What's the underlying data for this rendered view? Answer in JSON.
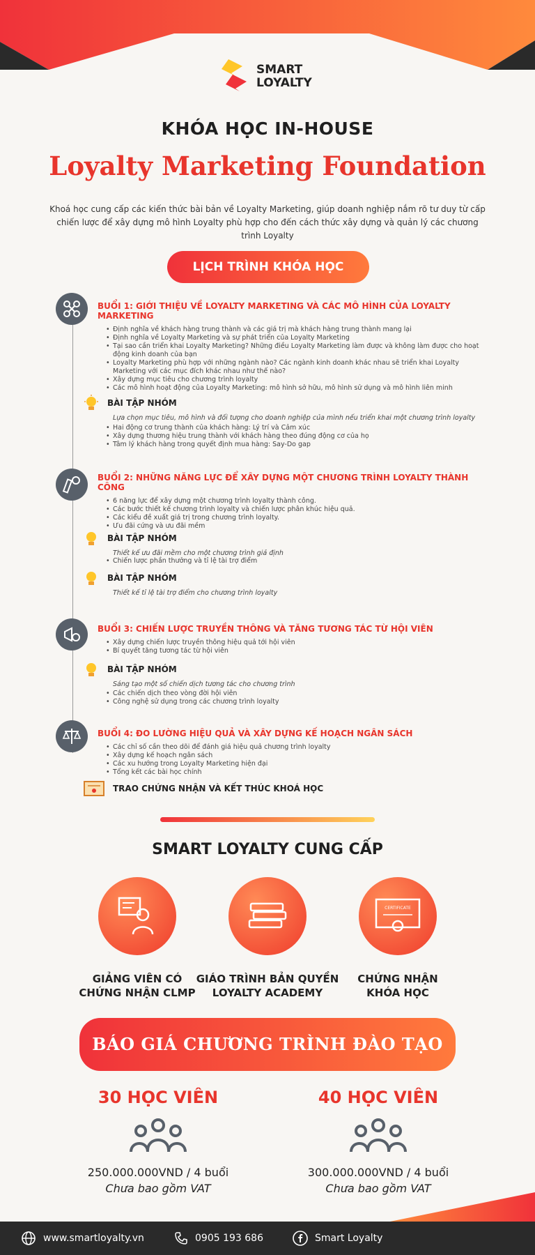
{
  "brand": {
    "logo_line1": "SMART",
    "logo_line2": "LOYALTY"
  },
  "header": {
    "subtitle": "KHÓA HỌC IN-HOUSE",
    "title": "Loyalty Marketing Foundation",
    "intro": "Khoá học cung cấp các kiến thức bài bản về Loyalty Marketing, giúp doanh nghiệp nắm rõ tư duy từ cấp chiến lược để xây dựng mô hình Loyalty phù hợp cho đến cách thức xây dựng và quản lý các chương trình Loyalty"
  },
  "schedule": {
    "label": "LỊCH TRÌNH KHÓA HỌC",
    "sessions": [
      {
        "title": "BUỔI 1: GIỚI THIỆU VỀ LOYALTY MARKETING VÀ CÁC MÔ HÌNH CỦA LOYALTY MARKETING",
        "items": [
          "Định nghĩa về khách hàng trung thành và các giá trị mà khách hàng trung thành mang lại",
          "Định nghĩa về Loyalty Marketing và sự phát triển của Loyalty Marketing",
          "Tại sao cần triển khai Loyalty Marketing? Những điều Loyalty Marketing làm được và không làm được cho hoạt động kinh doanh của bạn",
          "Loyalty Marketing phù hợp với những ngành nào? Các ngành kinh doanh khác nhau sẽ triển khai Loyalty Marketing với các mục đích khác nhau như thế nào?",
          "Xây dựng mục tiêu cho chương trình loyalty",
          "Các mô hình hoạt động của Loyalty Marketing: mô hình sở hữu, mô hình sử dụng và mô hình liên minh"
        ],
        "group_label": "BÀI TẬP NHÓM",
        "group_note": "Lựa chọn mục tiêu, mô hình và đối tượng cho doanh nghiệp của mình nếu triển khai một chương trình loyalty",
        "after": [
          "Hai động cơ trung thành của khách hàng: Lý trí và Cảm xúc",
          "Xây dựng thương hiệu trung thành với khách hàng theo đúng động cơ của họ",
          "Tâm lý khách hàng trong quyết định mua hàng: Say-Do gap"
        ]
      },
      {
        "title": "BUỔI 2: NHỮNG NĂNG LỰC ĐỂ XÂY DỰNG MỘT CHƯƠNG TRÌNH LOYALTY THÀNH CÔNG",
        "items": [
          "6 năng lực để xây dựng một chương trình loyalty thành công.",
          "Các bước thiết kế chương trình loyalty và chiến lược phân khúc hiệu quả.",
          "Các kiểu đề xuất giá trị trong chương trình loyalty.",
          "Ưu đãi cứng và ưu đãi mềm"
        ],
        "group_label": "BÀI TẬP NHÓM",
        "group_note": "Thiết kế ưu đãi mềm cho một chương trình giả định",
        "after": [
          "Chiến lược phần thưởng và tỉ lệ tài trợ điểm"
        ],
        "group2_label": "BÀI TẬP NHÓM",
        "group2_note": "Thiết kế tỉ lệ tài trợ điểm cho chương trình loyalty"
      },
      {
        "title": "BUỔI 3: CHIẾN LƯỢC TRUYỀN THÔNG VÀ TĂNG TƯƠNG TÁC TỪ HỘI VIÊN",
        "items": [
          "Xây dựng chiến lược truyền thông hiệu quả tới hội viên",
          "Bí quyết tăng tương tác từ hội viên"
        ],
        "group_label": "BÀI TẬP NHÓM",
        "group_note": "Sáng tạo một số chiến dịch tương tác cho chương trình",
        "after": [
          "Các chiến dịch theo vòng đời hội viên",
          "Công nghệ sử dụng trong các chương trình loyalty"
        ]
      },
      {
        "title": "BUỔI 4: ĐO LƯỜNG HIỆU QUẢ VÀ XÂY DỰNG KẾ HOẠCH NGÂN SÁCH",
        "items": [
          "Các chỉ số cần theo dõi để đánh giá hiệu quả chương trình loyalty",
          "Xây dựng kế hoạch ngân sách",
          "Các xu hướng trong Loyalty Marketing hiện đại",
          "Tổng kết các bài học chính"
        ],
        "closing": "TRAO CHỨNG NHẬN VÀ KẾT THÚC KHOÁ HỌC"
      }
    ]
  },
  "offers": {
    "heading": "SMART LOYALTY CUNG CẤP",
    "items": [
      {
        "line1": "GIẢNG VIÊN CÓ",
        "line2": "CHỨNG NHẬN CLMP"
      },
      {
        "line1": "GIÁO TRÌNH BẢN QUYỀN",
        "line2": "LOYALTY ACADEMY"
      },
      {
        "line1": "CHỨNG NHẬN",
        "line2": "KHÓA HỌC",
        "badge": "CERTIFICATE"
      }
    ]
  },
  "pricing": {
    "heading": "BÁO GIÁ CHƯƠNG TRÌNH ĐÀO TẠO",
    "plans": [
      {
        "count": "30 HỌC VIÊN",
        "price": "250.000.000VND / 4 buổi",
        "vat": "Chưa bao gồm VAT"
      },
      {
        "count": "40 HỌC VIÊN",
        "price": "300.000.000VND / 4 buổi",
        "vat": "Chưa bao gồm VAT"
      }
    ]
  },
  "footer": {
    "website": "www.smartloyalty.vn",
    "phone": "0905 193 686",
    "facebook": "Smart Loyalty"
  },
  "colors": {
    "accent": "#e8352c",
    "accent_light": "#ff7a3c",
    "dark": "#2a2a2a",
    "icon_gray": "#58606a"
  }
}
